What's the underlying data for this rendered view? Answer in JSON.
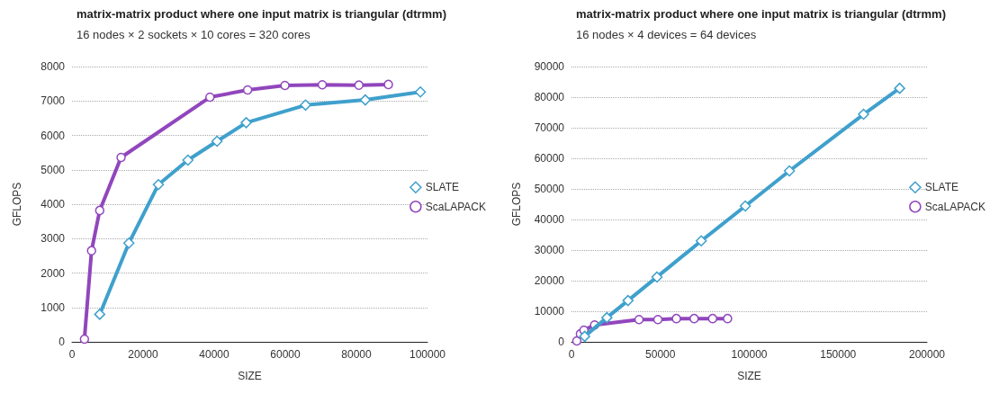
{
  "chart_data": [
    {
      "type": "line",
      "title": "matrix-matrix product where one input matrix is triangular (dtrmm)",
      "subtitle": "16 nodes × 2 sockets × 10 cores = 320 cores",
      "xlabel": "SIZE",
      "ylabel": "GFLOPS",
      "xlim": [
        0,
        100000
      ],
      "xticks": [
        0,
        20000,
        40000,
        60000,
        80000,
        100000
      ],
      "ylim": [
        0,
        8000
      ],
      "yticks": [
        0,
        1000,
        2000,
        3000,
        4000,
        5000,
        6000,
        7000,
        8000
      ],
      "grid": "y",
      "legend": "right",
      "line_style": "solid",
      "series": [
        {
          "name": "SLATE",
          "color": "#3fa0cc",
          "marker": "diamond",
          "x": [
            7800,
            16000,
            24300,
            32600,
            40800,
            49000,
            65700,
            82500,
            98000
          ],
          "values": [
            800,
            2870,
            4570,
            5280,
            5830,
            6370,
            6880,
            7030,
            7260
          ]
        },
        {
          "name": "ScaLAPACK",
          "color": "#9146bd",
          "marker": "circle",
          "x": [
            3500,
            5500,
            7800,
            13800,
            38800,
            49400,
            59900,
            70400,
            80700,
            89000
          ],
          "values": [
            80,
            2650,
            3820,
            5360,
            7110,
            7320,
            7450,
            7470,
            7460,
            7480
          ]
        }
      ]
    },
    {
      "type": "line",
      "title": "matrix-matrix product where one input matrix is triangular (dtrmm)",
      "subtitle": "16 nodes × 4 devices = 64 devices",
      "xlabel": "SIZE",
      "ylabel": "GFLOPS",
      "xlim": [
        0,
        200000
      ],
      "xticks": [
        0,
        50000,
        100000,
        150000,
        200000
      ],
      "ylim": [
        0,
        90000
      ],
      "yticks": [
        0,
        10000,
        20000,
        30000,
        40000,
        50000,
        60000,
        70000,
        80000,
        90000
      ],
      "grid": "y",
      "legend": "right",
      "line_style": "solid",
      "series": [
        {
          "name": "SLATE",
          "color": "#3fa0cc",
          "marker": "diamond",
          "x": [
            7400,
            19900,
            31800,
            48100,
            73000,
            97800,
            122600,
            164300,
            184600
          ],
          "values": [
            1800,
            7900,
            13500,
            21200,
            33000,
            44400,
            55900,
            74400,
            82900
          ]
        },
        {
          "name": "ScaLAPACK",
          "color": "#9146bd",
          "marker": "circle",
          "x": [
            3000,
            5000,
            7000,
            13000,
            38000,
            48600,
            59000,
            69000,
            79400,
            87800
          ],
          "values": [
            300,
            2600,
            3800,
            5500,
            7300,
            7300,
            7600,
            7600,
            7600,
            7600
          ]
        }
      ]
    }
  ]
}
